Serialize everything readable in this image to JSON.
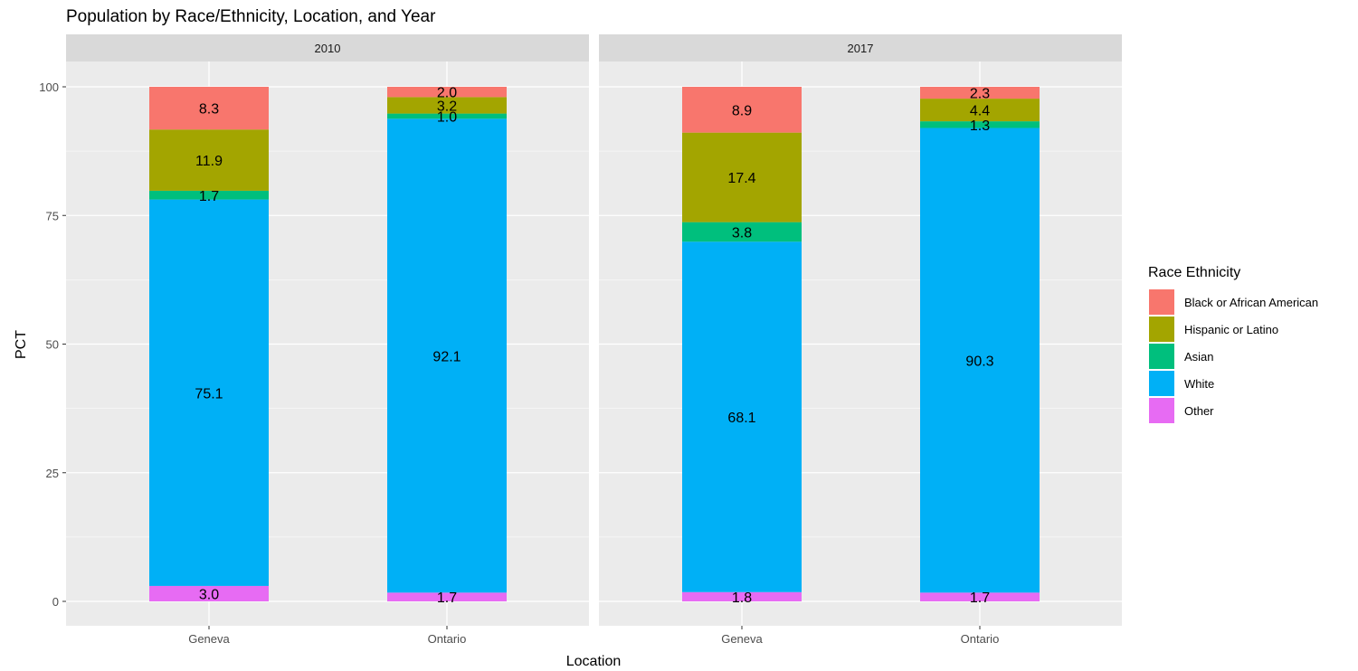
{
  "chart_data": {
    "type": "bar",
    "stacked": true,
    "title": "Population by Race/Ethnicity, Location, and Year",
    "xlabel": "Location",
    "ylabel": "PCT",
    "ylim": [
      0,
      100
    ],
    "yticks": [
      0,
      25,
      50,
      75,
      100
    ],
    "grid": true,
    "legend": {
      "title": "Race Ethnicity",
      "position": "right",
      "entries": [
        {
          "name": "Black or African American",
          "color": "#F8766D"
        },
        {
          "name": "Hispanic or Latino",
          "color": "#A3A500"
        },
        {
          "name": "Asian",
          "color": "#00BF7D"
        },
        {
          "name": "White",
          "color": "#00B0F6"
        },
        {
          "name": "Other",
          "color": "#E76BF3"
        }
      ]
    },
    "stack_order_bottom_to_top": [
      "Other",
      "White",
      "Asian",
      "Hispanic or Latino",
      "Black or African American"
    ],
    "categories": [
      "Geneva",
      "Ontario"
    ],
    "panels": [
      {
        "facet": "2010",
        "series": [
          {
            "name": "Black or African American",
            "values": [
              8.3,
              2.0
            ]
          },
          {
            "name": "Hispanic or Latino",
            "values": [
              11.9,
              3.2
            ]
          },
          {
            "name": "Asian",
            "values": [
              1.7,
              1.0
            ]
          },
          {
            "name": "White",
            "values": [
              75.1,
              92.1
            ]
          },
          {
            "name": "Other",
            "values": [
              3.0,
              1.7
            ]
          }
        ]
      },
      {
        "facet": "2017",
        "series": [
          {
            "name": "Black or African American",
            "values": [
              8.9,
              2.3
            ]
          },
          {
            "name": "Hispanic or Latino",
            "values": [
              17.4,
              4.4
            ]
          },
          {
            "name": "Asian",
            "values": [
              3.8,
              1.3
            ]
          },
          {
            "name": "White",
            "values": [
              68.1,
              90.3
            ]
          },
          {
            "name": "Other",
            "values": [
              1.8,
              1.7
            ]
          }
        ]
      }
    ],
    "colors": {
      "panel_background": "#EBEBEB",
      "strip_background": "#D9D9D9",
      "grid": "#FFFFFF"
    }
  }
}
